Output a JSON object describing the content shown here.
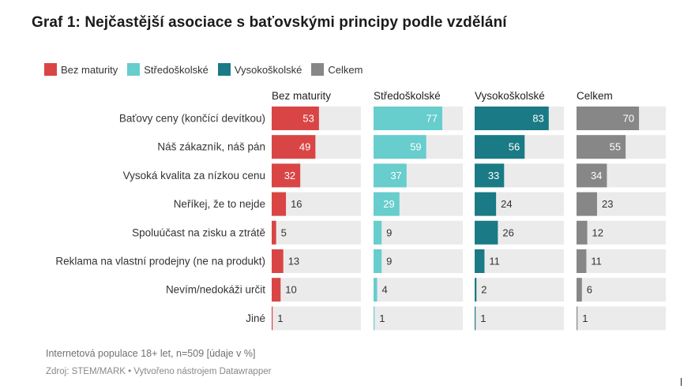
{
  "title": "Graf 1: Nejčastější asociace s baťovskými principy podle vzdělání",
  "notes": "Internetová populace 18+ let, n=509 [údaje v %]",
  "source": "Zdroj: STEM/MARK • Vytvořeno nástrojem Datawrapper",
  "colors": {
    "bez_maturity": "#d94545",
    "stredoskolske": "#67cdcd",
    "vysokoskolske": "#1a7a85",
    "celkem": "#878787",
    "track": "#ebebeb"
  },
  "chart_data": {
    "type": "bar",
    "orientation": "horizontal",
    "layout": "small-multiples",
    "legend_position": "top-left",
    "xlim": [
      0,
      100
    ],
    "categories": [
      "Baťovy ceny (končící devítkou)",
      "Náš zákazník, náš pán",
      "Vysoká kvalita za nízkou cenu",
      "Neříkej, že to nejde",
      "Spoluúčast na zisku a ztrátě",
      "Reklama na vlastní prodejny (ne na produkt)",
      "Nevím/nedokáži určit",
      "Jiné"
    ],
    "series": [
      {
        "name": "Bez maturity",
        "color": "#d94545",
        "values": [
          53,
          49,
          32,
          16,
          5,
          13,
          10,
          1
        ]
      },
      {
        "name": "Středoškolské",
        "color": "#67cdcd",
        "values": [
          77,
          59,
          37,
          29,
          9,
          9,
          4,
          1
        ]
      },
      {
        "name": "Vysokoškolské",
        "color": "#1a7a85",
        "values": [
          83,
          56,
          33,
          24,
          26,
          11,
          2,
          1
        ]
      },
      {
        "name": "Celkem",
        "color": "#878787",
        "values": [
          70,
          55,
          34,
          23,
          12,
          11,
          6,
          1
        ]
      }
    ]
  }
}
